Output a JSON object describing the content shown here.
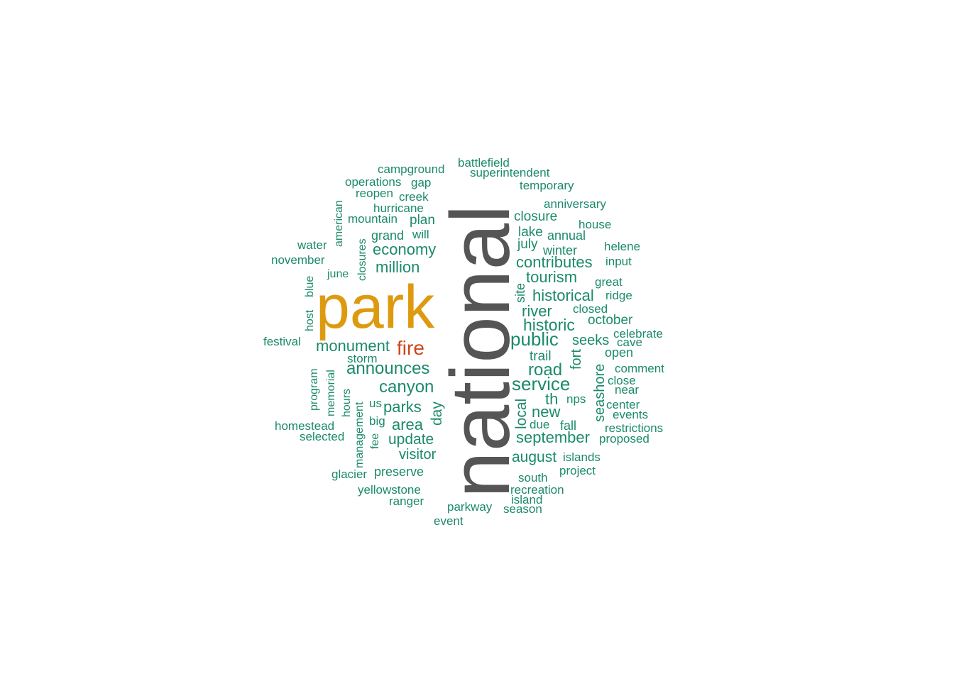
{
  "colors": {
    "national": "#555555",
    "park": "#DE9A0F",
    "fire": "#D0461B",
    "default": "#1B8A6B"
  },
  "words": [
    "national",
    "park",
    "fire",
    "monument",
    "announces",
    "canyon",
    "parks",
    "area",
    "update",
    "visitor",
    "economy",
    "million",
    "contributes",
    "tourism",
    "historical",
    "river",
    "historic",
    "public",
    "road",
    "service",
    "th",
    "new",
    "september",
    "august",
    "day",
    "local",
    "seashore",
    "fort",
    "site",
    "seeks",
    "campground",
    "battlefield",
    "superintendent",
    "operations",
    "gap",
    "reopen",
    "creek",
    "temporary",
    "hurricane",
    "anniversary",
    "mountain",
    "plan",
    "closure",
    "house",
    "american",
    "lake",
    "annual",
    "grand",
    "will",
    "water",
    "july",
    "winter",
    "helene",
    "november",
    "closures",
    "june",
    "input",
    "blue",
    "great",
    "ridge",
    "closed",
    "host",
    "october",
    "celebrate",
    "festival",
    "cave",
    "storm",
    "open",
    "trail",
    "comment",
    "program",
    "memorial",
    "close",
    "near",
    "hours",
    "management",
    "us",
    "nps",
    "center",
    "events",
    "homestead",
    "big",
    "due",
    "fall",
    "restrictions",
    "selected",
    "fee",
    "proposed",
    "islands",
    "glacier",
    "preserve",
    "project",
    "south",
    "yellowstone",
    "recreation",
    "ranger",
    "island",
    "parkway",
    "season",
    "event"
  ]
}
